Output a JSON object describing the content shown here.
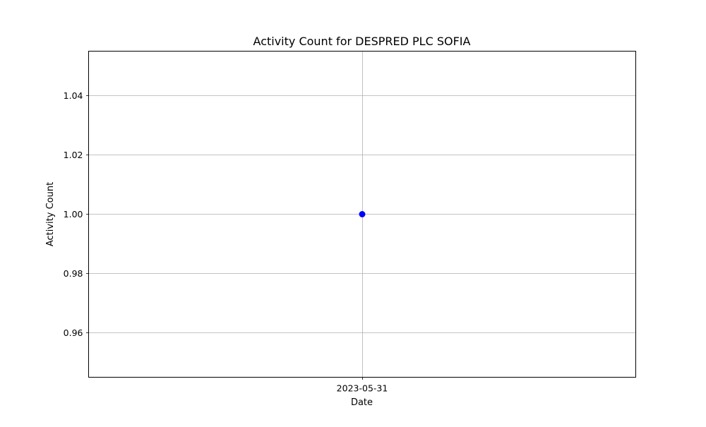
{
  "chart_data": {
    "type": "line",
    "title": "Activity Count for DESPRED PLC SOFIA",
    "xlabel": "Date",
    "ylabel": "Activity Count",
    "x_ticks": [
      "2023-05-31"
    ],
    "y_ticks": [
      0.96,
      0.98,
      1.0,
      1.02,
      1.04
    ],
    "y_tick_labels": [
      "0.96",
      "0.98",
      "1.00",
      "1.02",
      "1.04"
    ],
    "ylim": [
      0.945,
      1.055
    ],
    "grid": true,
    "series": [
      {
        "color": "#0000ff",
        "marker": "circle",
        "points": [
          {
            "x": "2023-05-31",
            "y": 1.0
          }
        ]
      }
    ]
  }
}
